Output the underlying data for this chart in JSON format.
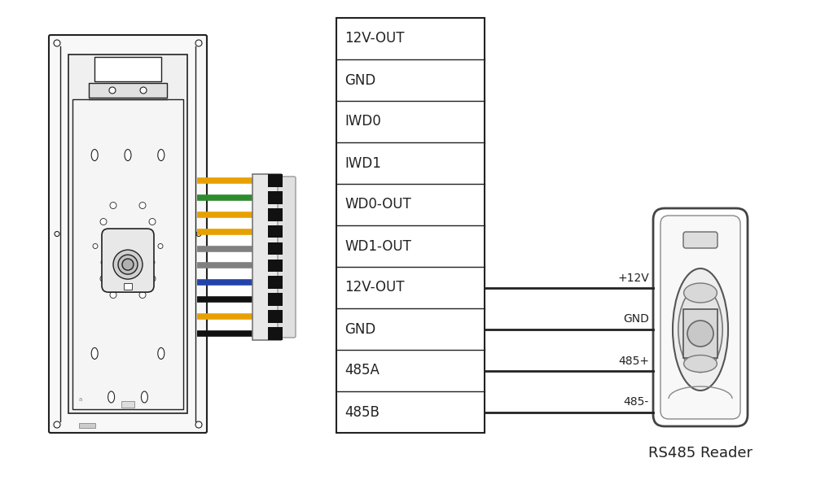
{
  "bg_color": "#ffffff",
  "rows": [
    "12V-OUT",
    "GND",
    "IWD0",
    "IWD1",
    "WD0-OUT",
    "WD1-OUT",
    "12V-OUT",
    "GND",
    "485A",
    "485B"
  ],
  "connected_rows": [
    6,
    7,
    8,
    9
  ],
  "connection_labels": [
    "+12V",
    "GND",
    "485+",
    "485-"
  ],
  "wire_colors": [
    "#E8A000",
    "#2E8B2E",
    "#E8A000",
    "#E8A000",
    "#808080",
    "#808080",
    "#2244AA",
    "#111111",
    "#E8A000",
    "#111111"
  ],
  "line_color": "#222222",
  "text_color": "#222222",
  "rs485_label": "RS485 Reader",
  "font_size_table": 12,
  "font_size_label": 10,
  "font_size_reader": 13
}
